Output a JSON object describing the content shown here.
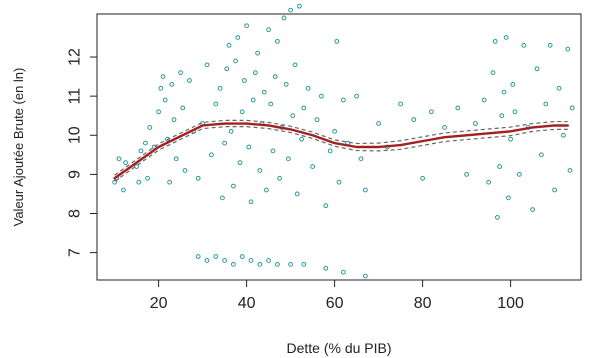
{
  "chart_data": {
    "type": "scatter",
    "xlabel": "Dette (% du PIB)",
    "ylabel": "Valeur Ajoutée Brute (en ln)",
    "xlim": [
      6,
      116
    ],
    "ylim": [
      6.3,
      13.1
    ],
    "x_ticks": [
      20,
      40,
      60,
      80,
      100
    ],
    "x_tick_labels": [
      "20",
      "40",
      "60",
      "80",
      "100"
    ],
    "y_ticks": [
      7,
      8,
      9,
      10,
      11,
      12
    ],
    "y_tick_labels": [
      "7",
      "8",
      "9",
      "10",
      "11",
      "12"
    ],
    "grid": false,
    "legend": "none",
    "series": [
      {
        "type": "scatter",
        "marker": "open-circle",
        "color": "#2a9a9a",
        "points": [
          [
            10,
            8.8
          ],
          [
            10.5,
            8.9
          ],
          [
            11,
            9.4
          ],
          [
            12,
            8.6
          ],
          [
            12.5,
            9.3
          ],
          [
            15,
            9.2
          ],
          [
            15.5,
            8.8
          ],
          [
            16,
            9.6
          ],
          [
            17,
            9.8
          ],
          [
            17.5,
            8.9
          ],
          [
            18,
            10.2
          ],
          [
            19,
            9.7
          ],
          [
            20,
            10.6
          ],
          [
            20.5,
            11.2
          ],
          [
            21,
            11.5
          ],
          [
            21.5,
            10.9
          ],
          [
            22,
            9.9
          ],
          [
            22.5,
            8.8
          ],
          [
            23,
            11.3
          ],
          [
            23.5,
            10.4
          ],
          [
            24,
            9.4
          ],
          [
            25,
            11.6
          ],
          [
            25.5,
            10.7
          ],
          [
            26,
            9.1
          ],
          [
            27,
            11.4
          ],
          [
            28,
            10.1
          ],
          [
            29,
            8.9
          ],
          [
            30,
            10.3
          ],
          [
            31,
            11.8
          ],
          [
            32,
            9.5
          ],
          [
            33,
            10.8
          ],
          [
            34,
            11.2
          ],
          [
            34.5,
            8.4
          ],
          [
            35,
            9.8
          ],
          [
            35.5,
            11.7
          ],
          [
            36,
            12.3
          ],
          [
            36.5,
            10.1
          ],
          [
            37,
            8.7
          ],
          [
            37.5,
            11.9
          ],
          [
            38,
            12.5
          ],
          [
            38.5,
            9.3
          ],
          [
            39,
            10.6
          ],
          [
            39.5,
            11.4
          ],
          [
            40,
            12.8
          ],
          [
            40.5,
            9.7
          ],
          [
            41,
            8.3
          ],
          [
            41.5,
            10.9
          ],
          [
            42,
            11.6
          ],
          [
            42.5,
            12.1
          ],
          [
            43,
            9.1
          ],
          [
            43.5,
            10.3
          ],
          [
            44,
            11.1
          ],
          [
            44.5,
            8.6
          ],
          [
            45,
            12.7
          ],
          [
            45.5,
            10.8
          ],
          [
            46,
            9.6
          ],
          [
            46.5,
            11.5
          ],
          [
            47,
            12.4
          ],
          [
            47.5,
            8.9
          ],
          [
            48,
            10.2
          ],
          [
            48.5,
            13.0
          ],
          [
            49,
            11.3
          ],
          [
            49.5,
            9.4
          ],
          [
            50,
            13.2
          ],
          [
            50.5,
            10.5
          ],
          [
            51,
            11.8
          ],
          [
            51.5,
            8.5
          ],
          [
            52,
            13.3
          ],
          [
            52.5,
            9.9
          ],
          [
            53,
            10.7
          ],
          [
            54,
            11.2
          ],
          [
            55,
            9.2
          ],
          [
            56,
            10.4
          ],
          [
            57,
            11.0
          ],
          [
            58,
            8.2
          ],
          [
            59,
            9.6
          ],
          [
            60,
            10.1
          ],
          [
            60.5,
            12.4
          ],
          [
            61,
            8.8
          ],
          [
            62,
            10.9
          ],
          [
            63,
            9.8
          ],
          [
            65,
            11.0
          ],
          [
            66,
            9.4
          ],
          [
            67,
            8.6
          ],
          [
            70,
            10.3
          ],
          [
            72,
            9.7
          ],
          [
            75,
            10.8
          ],
          [
            78,
            10.4
          ],
          [
            80,
            8.9
          ],
          [
            82,
            10.6
          ],
          [
            85,
            10.2
          ],
          [
            88,
            10.7
          ],
          [
            90,
            9.0
          ],
          [
            92,
            10.3
          ],
          [
            94,
            10.9
          ],
          [
            95,
            8.8
          ],
          [
            96,
            11.6
          ],
          [
            96.5,
            12.4
          ],
          [
            97,
            7.9
          ],
          [
            97.5,
            9.2
          ],
          [
            98,
            10.5
          ],
          [
            98.5,
            11.1
          ],
          [
            99,
            12.5
          ],
          [
            99.5,
            8.4
          ],
          [
            100,
            9.9
          ],
          [
            100.5,
            11.3
          ],
          [
            101,
            10.6
          ],
          [
            102,
            9.0
          ],
          [
            103,
            12.3
          ],
          [
            104,
            10.2
          ],
          [
            105,
            8.1
          ],
          [
            106,
            11.7
          ],
          [
            107,
            9.5
          ],
          [
            108,
            10.8
          ],
          [
            109,
            12.3
          ],
          [
            110,
            8.6
          ],
          [
            111,
            11.2
          ],
          [
            112,
            10.0
          ],
          [
            113,
            12.2
          ],
          [
            113.5,
            9.1
          ],
          [
            114,
            10.7
          ],
          [
            29,
            6.9
          ],
          [
            31,
            6.8
          ],
          [
            33,
            6.9
          ],
          [
            35,
            6.8
          ],
          [
            37,
            6.7
          ],
          [
            39,
            6.9
          ],
          [
            41,
            6.8
          ],
          [
            43,
            6.7
          ],
          [
            45,
            6.8
          ],
          [
            47,
            6.7
          ],
          [
            50,
            6.7
          ],
          [
            53,
            6.7
          ],
          [
            58,
            6.6
          ],
          [
            62,
            6.5
          ],
          [
            67,
            6.4
          ]
        ]
      },
      {
        "type": "line",
        "color": "#a32020",
        "points": [
          [
            10,
            8.9
          ],
          [
            20,
            9.7
          ],
          [
            30,
            10.25
          ],
          [
            35,
            10.3
          ],
          [
            40,
            10.3
          ],
          [
            45,
            10.25
          ],
          [
            50,
            10.15
          ],
          [
            55,
            10.0
          ],
          [
            60,
            9.8
          ],
          [
            65,
            9.7
          ],
          [
            70,
            9.7
          ],
          [
            75,
            9.75
          ],
          [
            80,
            9.85
          ],
          [
            85,
            9.95
          ],
          [
            90,
            10.0
          ],
          [
            95,
            10.05
          ],
          [
            100,
            10.1
          ],
          [
            105,
            10.2
          ],
          [
            110,
            10.25
          ],
          [
            113,
            10.25
          ]
        ]
      },
      {
        "type": "dashed-band-upper",
        "color": "#666666",
        "points": [
          [
            10,
            8.98
          ],
          [
            20,
            9.78
          ],
          [
            30,
            10.33
          ],
          [
            35,
            10.38
          ],
          [
            40,
            10.38
          ],
          [
            45,
            10.33
          ],
          [
            50,
            10.23
          ],
          [
            55,
            10.08
          ],
          [
            60,
            9.88
          ],
          [
            65,
            9.79
          ],
          [
            70,
            9.8
          ],
          [
            75,
            9.86
          ],
          [
            80,
            9.96
          ],
          [
            85,
            10.06
          ],
          [
            90,
            10.11
          ],
          [
            95,
            10.16
          ],
          [
            100,
            10.21
          ],
          [
            105,
            10.3
          ],
          [
            110,
            10.35
          ],
          [
            113,
            10.35
          ]
        ]
      },
      {
        "type": "dashed-band-lower",
        "color": "#666666",
        "points": [
          [
            10,
            8.82
          ],
          [
            20,
            9.62
          ],
          [
            30,
            10.17
          ],
          [
            35,
            10.22
          ],
          [
            40,
            10.22
          ],
          [
            45,
            10.17
          ],
          [
            50,
            10.07
          ],
          [
            55,
            9.92
          ],
          [
            60,
            9.72
          ],
          [
            65,
            9.61
          ],
          [
            70,
            9.6
          ],
          [
            75,
            9.64
          ],
          [
            80,
            9.74
          ],
          [
            85,
            9.84
          ],
          [
            90,
            9.89
          ],
          [
            95,
            9.94
          ],
          [
            100,
            9.99
          ],
          [
            105,
            10.1
          ],
          [
            110,
            10.15
          ],
          [
            113,
            10.15
          ]
        ]
      }
    ]
  }
}
